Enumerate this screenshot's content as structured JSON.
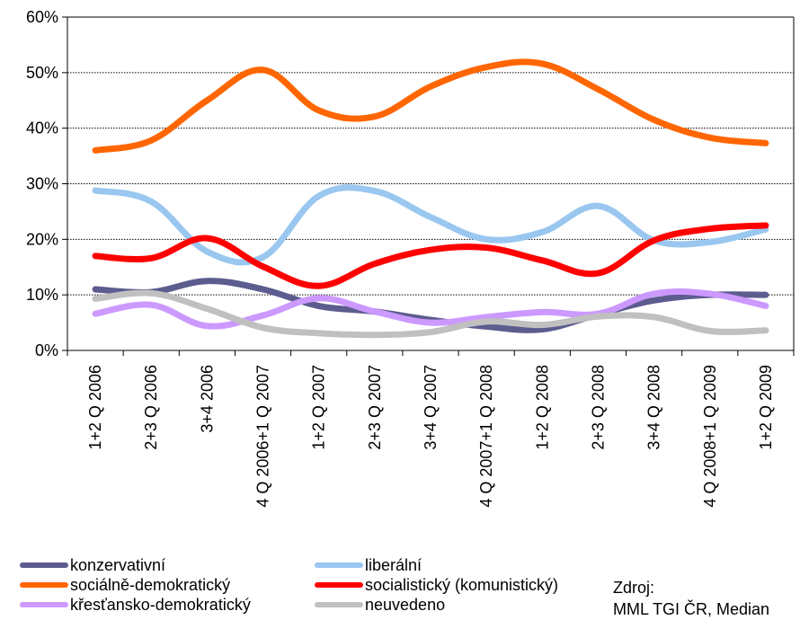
{
  "chart_data": {
    "type": "line",
    "categories": [
      "1+2 Q 2006",
      "2+3 Q 2006",
      "3+4  2006",
      "4 Q 2006+1 Q 2007",
      "1+2 Q 2007",
      "2+3 Q 2007",
      "3+4 Q 2007",
      "4 Q 2007+1 Q 2008",
      "1+2 Q 2008",
      "2+3 Q 2008",
      "3+4 Q 2008",
      "4 Q 2008+1 Q 2009",
      "1+2 Q 2009"
    ],
    "ylim": [
      0,
      60
    ],
    "yticks": [
      "0%",
      "10%",
      "20%",
      "30%",
      "40%",
      "50%",
      "60%"
    ],
    "grid": true,
    "legend_position": "bottom",
    "series": [
      {
        "name": "konzervativní",
        "color": "#5c5c8f",
        "values": [
          11,
          10.5,
          12.5,
          11,
          8,
          7,
          5.5,
          4.3,
          3.8,
          6.5,
          9,
          10,
          10
        ]
      },
      {
        "name": "liberální",
        "color": "#99c7f0",
        "values": [
          28.8,
          26.8,
          17.8,
          16.8,
          27.8,
          28.7,
          24,
          20,
          21.3,
          26,
          19.8,
          19.5,
          21.8
        ]
      },
      {
        "name": "sociálně-demokratický",
        "color": "#ff6600",
        "values": [
          36,
          37.8,
          45,
          50.5,
          43.2,
          42.1,
          47.5,
          51,
          51.6,
          47,
          41.5,
          38.3,
          37.3
        ]
      },
      {
        "name": "socialistický (komunistický)",
        "color": "#ff0000",
        "values": [
          17,
          16.6,
          20.2,
          15.1,
          11.6,
          15.6,
          18.1,
          18.5,
          16.2,
          13.9,
          19.8,
          21.9,
          22.5
        ]
      },
      {
        "name": "křesťansko-demokratický",
        "color": "#cc99ff",
        "values": [
          6.6,
          8.2,
          4.4,
          6.3,
          9.4,
          7,
          5,
          6,
          6.9,
          6.6,
          10.2,
          10.2,
          8
        ]
      },
      {
        "name": "neuvedeno",
        "color": "#c0c0c0",
        "values": [
          9.3,
          10.3,
          7.5,
          4.1,
          3.1,
          2.8,
          3.3,
          5.2,
          4.6,
          6.1,
          6,
          3.5,
          3.6
        ]
      }
    ]
  },
  "source": {
    "line1": "Zdroj:",
    "line2": "MML TGI ČR, Median"
  }
}
